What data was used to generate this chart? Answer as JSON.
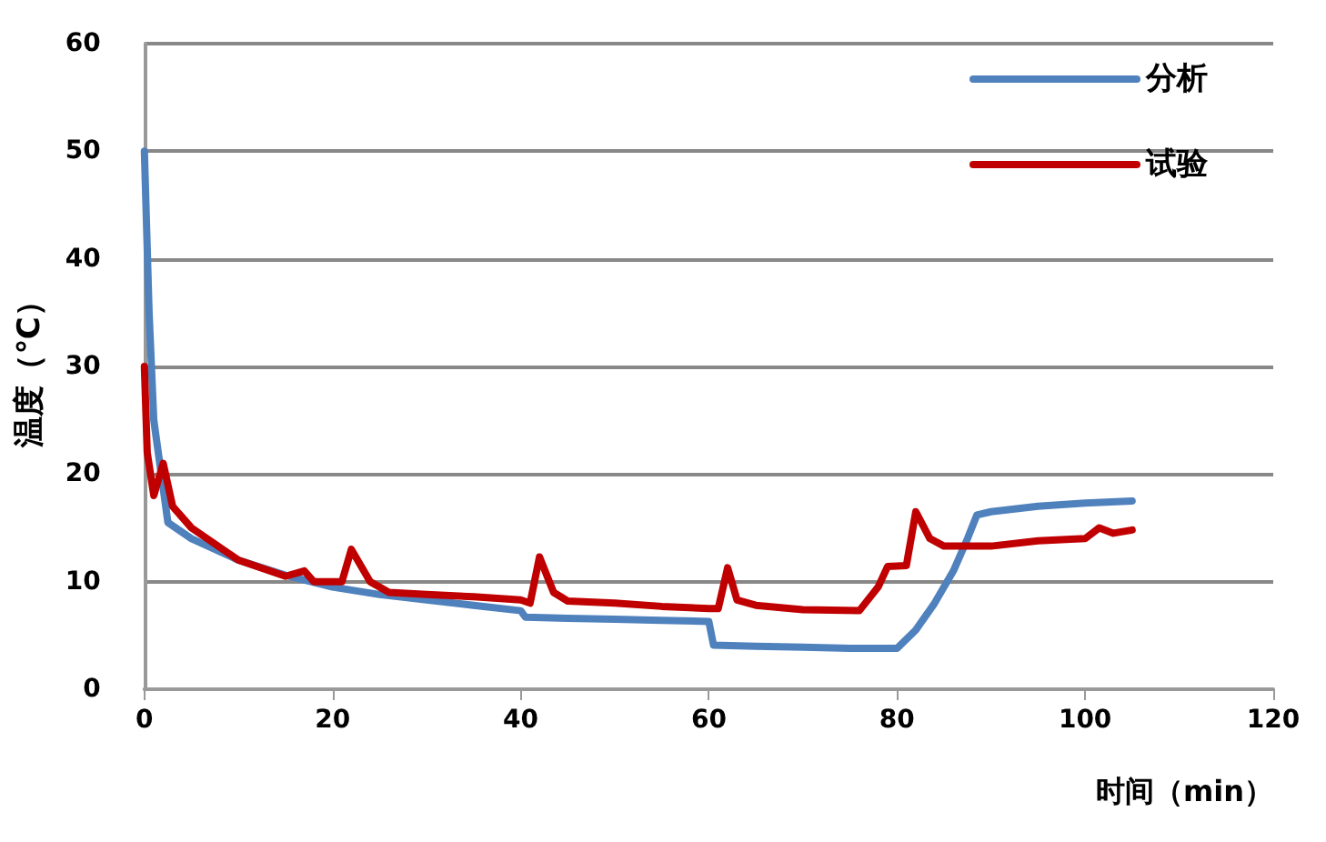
{
  "chart_data": {
    "type": "line",
    "xlabel": "时间（min）",
    "ylabel": "温度（℃）",
    "xlim": [
      0,
      120
    ],
    "xticks": [
      0,
      20,
      40,
      60,
      80,
      100,
      120
    ],
    "ylim": [
      0,
      60
    ],
    "yticks": [
      0,
      10,
      20,
      30,
      40,
      50,
      60
    ],
    "grid": "y",
    "legend": "top right",
    "marker": "none",
    "line_style": "solid",
    "series": [
      {
        "name": "分析",
        "color": "#4f81bd",
        "x": [
          0,
          0.5,
          1,
          2.5,
          5,
          10,
          15,
          20,
          25,
          30,
          35,
          40,
          40.5,
          45,
          50,
          55,
          60,
          60.5,
          65,
          70,
          75,
          80,
          82,
          84,
          86,
          87.5,
          88.5,
          90,
          95,
          100,
          105
        ],
        "values": [
          50,
          35,
          25,
          15.5,
          14,
          12,
          10.6,
          9.5,
          8.8,
          8.3,
          7.8,
          7.3,
          6.7,
          6.6,
          6.5,
          6.4,
          6.3,
          4.1,
          4,
          3.9,
          3.8,
          3.8,
          5.5,
          8,
          11,
          14,
          16.2,
          16.5,
          17,
          17.3,
          17.5
        ]
      },
      {
        "name": "试验",
        "color": "#c00000",
        "x": [
          0,
          0.3,
          1,
          2,
          3,
          5,
          10,
          15,
          17,
          18,
          21,
          22,
          24,
          26,
          30,
          35,
          40,
          41,
          42,
          43.5,
          45,
          50,
          55,
          60,
          61,
          62,
          63,
          65,
          70,
          76,
          78,
          79,
          81,
          82,
          83.5,
          85,
          90,
          95,
          100,
          101.5,
          103,
          105
        ],
        "values": [
          30,
          22,
          18,
          21,
          17,
          15,
          12,
          10.5,
          11,
          10,
          10,
          13,
          10,
          9,
          8.8,
          8.6,
          8.3,
          8,
          12.3,
          9,
          8.2,
          8,
          7.7,
          7.5,
          7.5,
          11.3,
          8.3,
          7.8,
          7.4,
          7.3,
          9.5,
          11.4,
          11.5,
          16.5,
          14,
          13.3,
          13.3,
          13.8,
          14,
          15,
          14.5,
          14.8
        ]
      }
    ]
  }
}
